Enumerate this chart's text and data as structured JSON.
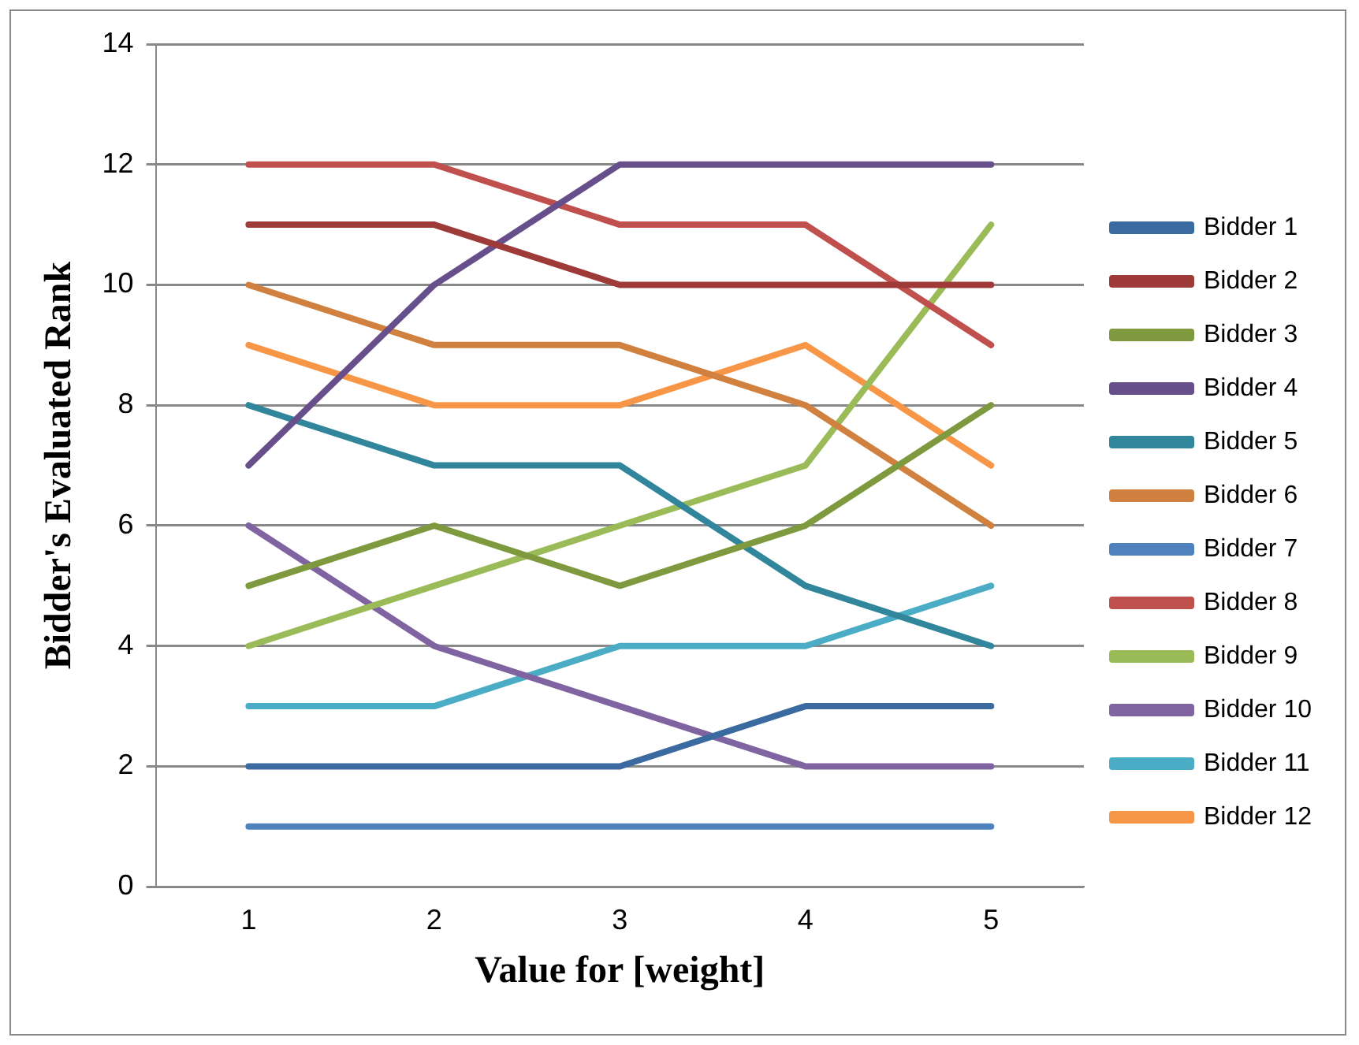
{
  "chart_data": {
    "type": "line",
    "xlabel": "Value for [weight]",
    "ylabel": "Bidder's Evaluated Rank",
    "categories": [
      "1",
      "2",
      "3",
      "4",
      "5"
    ],
    "ylim": [
      0,
      14
    ],
    "yticks": [
      0,
      2,
      4,
      6,
      8,
      10,
      12,
      14
    ],
    "grid": "y",
    "legend": "right",
    "marker": "none",
    "line_style": "solid",
    "series": [
      {
        "name": "Bidder 1",
        "color": "#3b6aa0",
        "values": [
          2,
          2,
          2,
          3,
          3
        ]
      },
      {
        "name": "Bidder 2",
        "color": "#9e3b39",
        "values": [
          11,
          11,
          10,
          10,
          10
        ]
      },
      {
        "name": "Bidder 3",
        "color": "#7f9a3e",
        "values": [
          5,
          6,
          5,
          6,
          8
        ]
      },
      {
        "name": "Bidder 4",
        "color": "#664f8a",
        "values": [
          7,
          10,
          12,
          12,
          12
        ]
      },
      {
        "name": "Bidder 5",
        "color": "#31869b",
        "values": [
          8,
          7,
          7,
          5,
          4
        ]
      },
      {
        "name": "Bidder 6",
        "color": "#d0813f",
        "values": [
          10,
          9,
          9,
          8,
          6
        ]
      },
      {
        "name": "Bidder 7",
        "color": "#4f81bd",
        "values": [
          1,
          1,
          1,
          1,
          1
        ]
      },
      {
        "name": "Bidder 8",
        "color": "#c0504d",
        "values": [
          12,
          12,
          11,
          11,
          9
        ]
      },
      {
        "name": "Bidder 9",
        "color": "#9bbb59",
        "values": [
          4,
          5,
          6,
          7,
          11
        ]
      },
      {
        "name": "Bidder 10",
        "color": "#8064a2",
        "values": [
          6,
          4,
          3,
          2,
          2
        ]
      },
      {
        "name": "Bidder 11",
        "color": "#4bacc6",
        "values": [
          3,
          3,
          4,
          4,
          5
        ]
      },
      {
        "name": "Bidder 12",
        "color": "#f79646",
        "values": [
          9,
          8,
          8,
          9,
          7
        ]
      }
    ]
  }
}
